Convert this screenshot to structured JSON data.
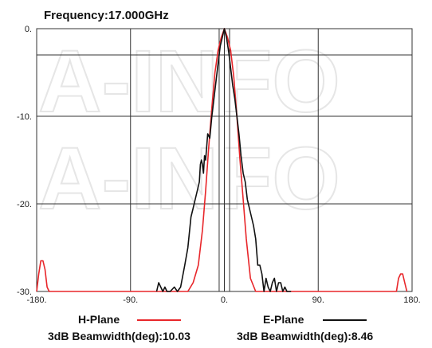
{
  "chart_data": {
    "type": "line",
    "title": "Frequency:17.000GHz",
    "xlim": [
      -180,
      180
    ],
    "ylim": [
      -30,
      0
    ],
    "x_ticks": [
      -180,
      -90,
      0,
      90,
      180
    ],
    "x_tick_labels": [
      "-180.",
      "-90.",
      "0.",
      "90.",
      "180."
    ],
    "y_ticks": [
      0,
      -10,
      -20,
      -30
    ],
    "y_tick_labels": [
      "0.",
      "-10.",
      "-20.",
      "-30."
    ],
    "y_minor_lines": [
      -3
    ],
    "x_minor_lines": [
      -5,
      5
    ],
    "grid": true,
    "legend_position": "bottom",
    "watermark": "A-INFO",
    "series": [
      {
        "name": "H-Plane",
        "color": "#e8262a",
        "beamwidth_label": "3dB Beamwidth(deg):10.03",
        "x": [
          -180,
          -178,
          -176,
          -174,
          -172,
          -170,
          -168,
          -35,
          -30,
          -25,
          -21,
          -18,
          -15,
          -12,
          -9,
          -6,
          -3,
          0,
          3,
          6,
          9,
          12,
          15,
          18,
          21,
          25,
          30,
          165,
          167,
          169,
          171,
          173,
          175
        ],
        "y": [
          -30,
          -28,
          -26.5,
          -26.5,
          -27.5,
          -29.5,
          -30,
          -30,
          -29,
          -27,
          -23,
          -18.5,
          -13.5,
          -9,
          -5,
          -2.5,
          -1,
          0,
          -1,
          -2.5,
          -5.5,
          -10,
          -15,
          -19.5,
          -24,
          -28.5,
          -30,
          -30,
          -28.5,
          -28,
          -28,
          -29,
          -30
        ]
      },
      {
        "name": "E-Plane",
        "color": "#111111",
        "beamwidth_label": "3dB Beamwidth(deg):8.46",
        "x": [
          -65,
          -63,
          -61,
          -59,
          -57,
          -55,
          -52,
          -48,
          -45,
          -42,
          -38,
          -35,
          -32,
          -30,
          -28,
          -26,
          -24,
          -23,
          -22,
          -21,
          -20,
          -19,
          -18,
          -16,
          -14,
          -12,
          -10,
          -8,
          -6,
          -4,
          -2,
          0,
          2,
          4,
          6,
          8,
          10,
          12,
          14,
          16,
          18,
          20,
          22,
          24,
          26,
          28,
          30,
          32,
          34,
          36,
          38,
          40,
          42,
          44,
          46,
          48,
          50,
          52,
          54,
          56,
          58,
          60,
          64
        ],
        "y": [
          -30,
          -29,
          -29.5,
          -30,
          -29.5,
          -30,
          -30,
          -29.5,
          -30,
          -29.5,
          -27,
          -25,
          -21.5,
          -20.5,
          -19.5,
          -18.5,
          -17.5,
          -15.5,
          -15,
          -15.5,
          -16.5,
          -14.5,
          -15,
          -12,
          -12.5,
          -10,
          -8,
          -6,
          -4,
          -2,
          -1,
          0,
          -1,
          -2.5,
          -4.5,
          -6.5,
          -8,
          -10,
          -12,
          -14.5,
          -16.5,
          -17.5,
          -19.5,
          -20.5,
          -21.5,
          -22.5,
          -24,
          -27,
          -27,
          -28,
          -30,
          -28.5,
          -29.5,
          -30,
          -29,
          -28.5,
          -30,
          -29,
          -29,
          -30,
          -29.5,
          -30,
          -30
        ]
      }
    ]
  }
}
